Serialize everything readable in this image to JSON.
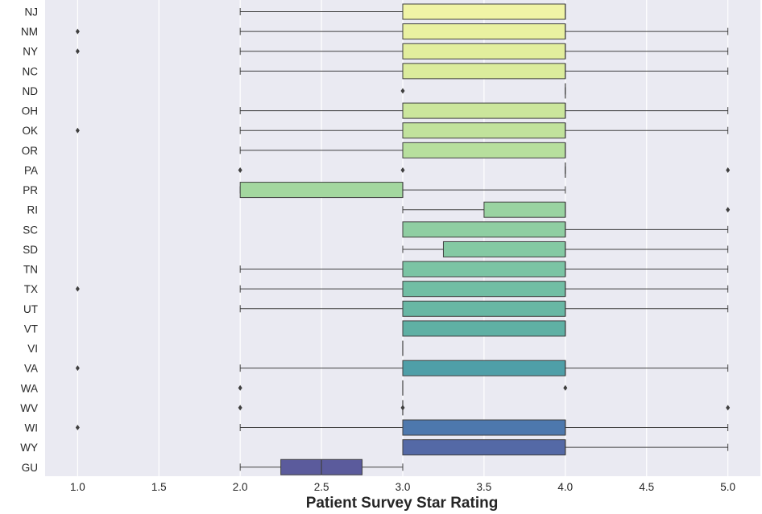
{
  "chart_data": {
    "type": "box",
    "title": "",
    "xlabel": "Patient Survey Star Rating",
    "ylabel": "",
    "xlim": [
      0.8,
      5.2
    ],
    "xticks": [
      "1.0",
      "1.5",
      "2.0",
      "2.5",
      "3.0",
      "3.5",
      "4.0",
      "4.5",
      "5.0"
    ],
    "grid": true,
    "background": "#eaeaf2",
    "palette": "crest-yellow-green-blue",
    "categories": [
      "NJ",
      "NM",
      "NY",
      "NC",
      "ND",
      "OH",
      "OK",
      "OR",
      "PA",
      "PR",
      "RI",
      "SC",
      "SD",
      "TN",
      "TX",
      "UT",
      "VT",
      "VI",
      "VA",
      "WA",
      "WV",
      "WI",
      "WY",
      "GU"
    ],
    "boxes": [
      {
        "label": "NJ",
        "whislo": 2,
        "q1": 3,
        "med": 4,
        "q3": 4,
        "whishi": 4,
        "fliers": [],
        "color": "#f0f4a6"
      },
      {
        "label": "NM",
        "whislo": 2,
        "q1": 3,
        "med": 4,
        "q3": 4,
        "whishi": 5,
        "fliers": [
          1
        ],
        "color": "#e9f1a1"
      },
      {
        "label": "NY",
        "whislo": 2,
        "q1": 3,
        "med": 4,
        "q3": 4,
        "whishi": 5,
        "fliers": [
          1
        ],
        "color": "#e2ee9d"
      },
      {
        "label": "NC",
        "whislo": 2,
        "q1": 3,
        "med": 4,
        "q3": 4,
        "whishi": 5,
        "fliers": [],
        "color": "#dbec9c"
      },
      {
        "label": "ND",
        "whislo": 4,
        "q1": 4,
        "med": 4,
        "q3": 4,
        "whishi": 4,
        "fliers": [
          3
        ],
        "color": "#d4e99d"
      },
      {
        "label": "OH",
        "whislo": 2,
        "q1": 3,
        "med": 4,
        "q3": 4,
        "whishi": 5,
        "fliers": [],
        "color": "#cbe69c"
      },
      {
        "label": "OK",
        "whislo": 2,
        "q1": 3,
        "med": 4,
        "q3": 4,
        "whishi": 5,
        "fliers": [
          1
        ],
        "color": "#c1e29c"
      },
      {
        "label": "OR",
        "whislo": 2,
        "q1": 3,
        "med": 4,
        "q3": 4,
        "whishi": 4,
        "fliers": [],
        "color": "#b7df9d"
      },
      {
        "label": "PA",
        "whislo": 4,
        "q1": 4,
        "med": 4,
        "q3": 4,
        "whishi": 4,
        "fliers": [
          2,
          3,
          5
        ],
        "color": "#addb9e"
      },
      {
        "label": "PR",
        "whislo": 2,
        "q1": 2,
        "med": 3,
        "q3": 3,
        "whishi": 4,
        "fliers": [],
        "color": "#a3d79f"
      },
      {
        "label": "RI",
        "whislo": 3,
        "q1": 3.5,
        "med": 4,
        "q3": 4,
        "whishi": 4,
        "fliers": [
          5
        ],
        "color": "#99d3a1"
      },
      {
        "label": "SC",
        "whislo": 3,
        "q1": 3,
        "med": 4,
        "q3": 4,
        "whishi": 5,
        "fliers": [],
        "color": "#8fcea2"
      },
      {
        "label": "SD",
        "whislo": 3,
        "q1": 3.25,
        "med": 4,
        "q3": 4,
        "whishi": 5,
        "fliers": [],
        "color": "#84c9a3"
      },
      {
        "label": "TN",
        "whislo": 2,
        "q1": 3,
        "med": 4,
        "q3": 4,
        "whishi": 5,
        "fliers": [],
        "color": "#7bc4a4"
      },
      {
        "label": "TX",
        "whislo": 2,
        "q1": 3,
        "med": 4,
        "q3": 4,
        "whishi": 5,
        "fliers": [
          1
        ],
        "color": "#71bea4"
      },
      {
        "label": "UT",
        "whislo": 2,
        "q1": 3,
        "med": 4,
        "q3": 4,
        "whishi": 5,
        "fliers": [],
        "color": "#68b7a4"
      },
      {
        "label": "VT",
        "whislo": 3,
        "q1": 3,
        "med": 4,
        "q3": 4,
        "whishi": 4,
        "fliers": [],
        "color": "#5fb0a4"
      },
      {
        "label": "VI",
        "whislo": 3,
        "q1": 3,
        "med": 3,
        "q3": 3,
        "whishi": 3,
        "fliers": [],
        "color": "#57a8a5"
      },
      {
        "label": "VA",
        "whislo": 2,
        "q1": 3,
        "med": 4,
        "q3": 4,
        "whishi": 5,
        "fliers": [
          1
        ],
        "color": "#4f9fa8"
      },
      {
        "label": "WA",
        "whislo": 3,
        "q1": 3,
        "med": 3,
        "q3": 3,
        "whishi": 3,
        "fliers": [
          2,
          4
        ],
        "color": "#4a94ab"
      },
      {
        "label": "WV",
        "whislo": 3,
        "q1": 3,
        "med": 3,
        "q3": 3,
        "whishi": 3,
        "fliers": [
          2,
          3,
          5
        ],
        "color": "#4a86ad"
      },
      {
        "label": "WI",
        "whislo": 2,
        "q1": 3,
        "med": 4,
        "q3": 4,
        "whishi": 5,
        "fliers": [
          1
        ],
        "color": "#4d78ad"
      },
      {
        "label": "WY",
        "whislo": 3,
        "q1": 3,
        "med": 4,
        "q3": 4,
        "whishi": 5,
        "fliers": [],
        "color": "#5469a6"
      },
      {
        "label": "GU",
        "whislo": 2,
        "q1": 2.25,
        "med": 2.5,
        "q3": 2.75,
        "whishi": 3,
        "fliers": [],
        "color": "#5b5b9c"
      }
    ]
  }
}
